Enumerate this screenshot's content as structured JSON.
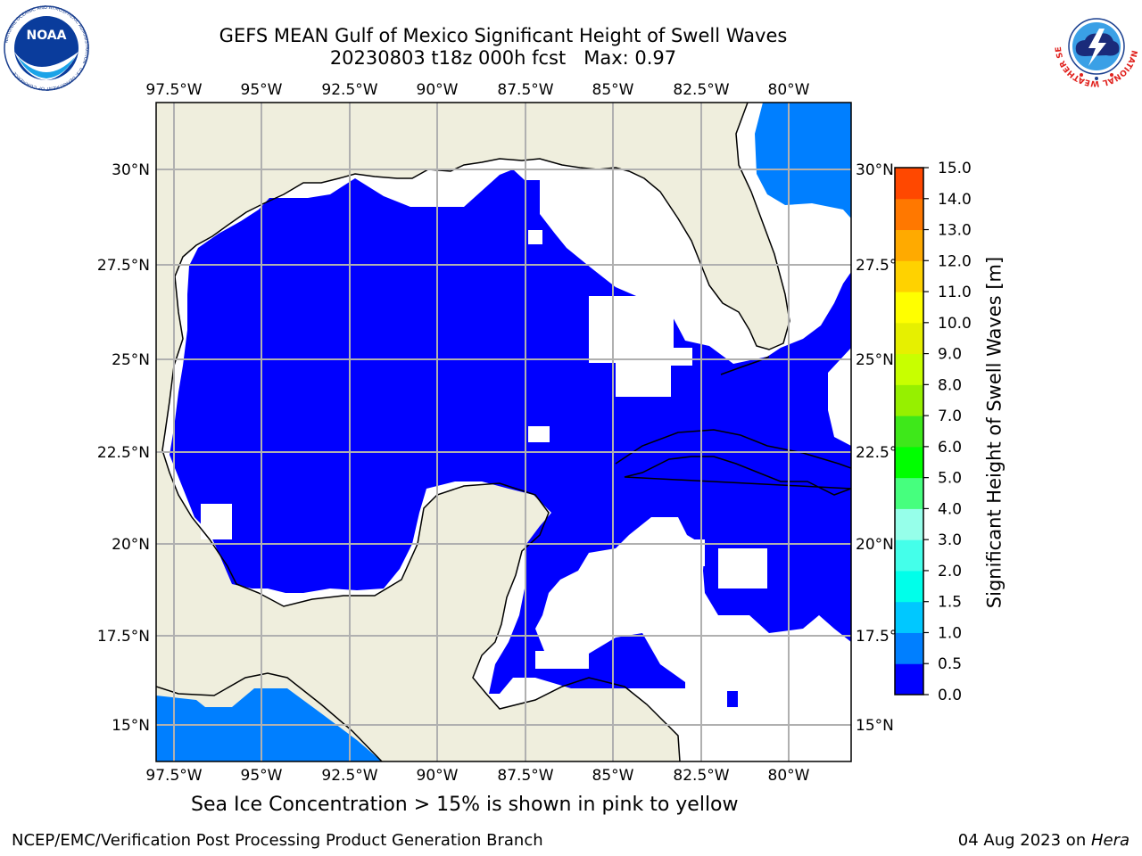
{
  "header": {
    "title_line1": "GEFS MEAN Gulf of Mexico Significant Height of Swell Waves",
    "title_line2": "20230803 t18z 000h fcst   Max: 0.97"
  },
  "logos": {
    "left": "NOAA",
    "left_ring": "NATIONAL OCEANIC AND ATMOSPHERIC ADMINISTRATION · U.S. DEPARTMENT OF COMMERCE",
    "right_ring": "NATIONAL WEATHER SERVICE"
  },
  "map": {
    "lon_ticks": [
      "97.5°W",
      "95°W",
      "92.5°W",
      "90°W",
      "87.5°W",
      "85°W",
      "82.5°W",
      "80°W"
    ],
    "lat_ticks_left": [
      "30°N",
      "27.5°N",
      "25°N",
      "22.5°N",
      "20°N",
      "17.5°N",
      "15°N"
    ],
    "lat_ticks_right": [
      "30°N",
      "27.5°N",
      "25°N",
      "22.5°N",
      "20°N",
      "17.5°N",
      "15°N"
    ],
    "colors": {
      "land": "#efeedd",
      "band_0_0.5": "#0000ff",
      "band_0.5_1.0": "#007fff",
      "grid": "#b0b0b0"
    },
    "note": "Sea Ice Concentration > 15% is shown in pink to yellow"
  },
  "colorbar": {
    "label": "Significant Height of Swell Waves [m]",
    "ticks": [
      "0.0",
      "0.5",
      "1.0",
      "1.5",
      "2.0",
      "3.0",
      "4.0",
      "5.0",
      "6.0",
      "7.0",
      "8.0",
      "9.0",
      "10.0",
      "11.0",
      "12.0",
      "13.0",
      "14.0",
      "15.0"
    ],
    "colors": [
      "#0000ff",
      "#007fff",
      "#00c8ff",
      "#00ffea",
      "#44ffea",
      "#96ffea",
      "#46ff7e",
      "#00ff00",
      "#3ee81a",
      "#96f000",
      "#c8ff00",
      "#e6f000",
      "#ffff00",
      "#ffd200",
      "#ffaa00",
      "#ff7800",
      "#ff4800",
      "#ff0000"
    ]
  },
  "footer": {
    "left": "NCEP/EMC/Verification Post Processing Product Generation Branch",
    "date": "04 Aug 2023 on ",
    "host": "Hera"
  }
}
